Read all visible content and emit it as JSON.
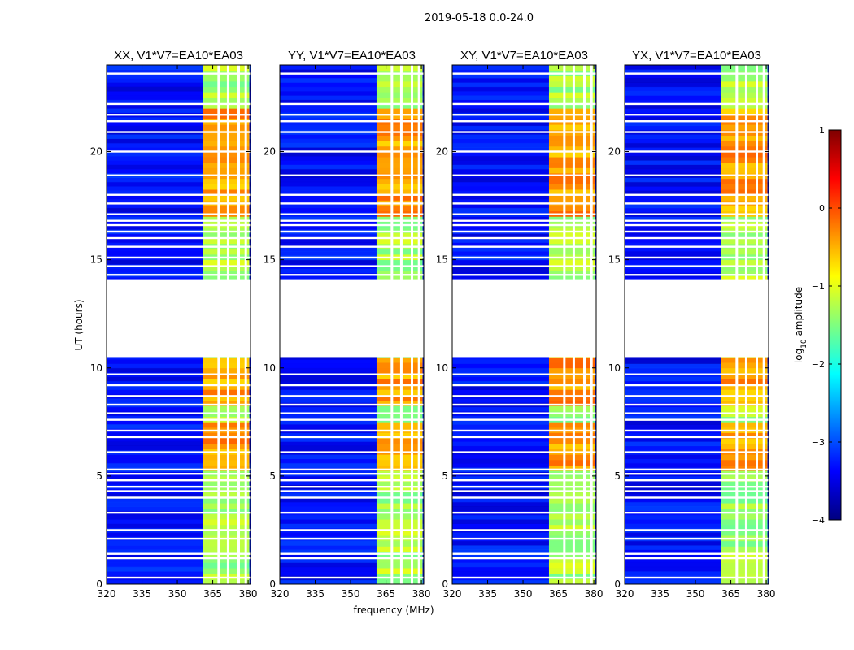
{
  "chart_data": {
    "type": "heatmap",
    "suptitle": "2019-05-18 0.0-24.0",
    "xlabel": "frequency (MHz)",
    "ylabel": "UT (hours)",
    "xlim": [
      320,
      381
    ],
    "ylim": [
      0,
      24
    ],
    "xticks": [
      320,
      335,
      350,
      365,
      380
    ],
    "yticks": [
      0,
      5,
      10,
      15,
      20
    ],
    "xtick_labels": [
      "320",
      "335",
      "350",
      "365",
      "380"
    ],
    "ytick_labels": [
      "0",
      "5",
      "10",
      "15",
      "20"
    ],
    "panels": [
      {
        "polarization": "XX",
        "title": "XX, V1*V7=EA10*EA03"
      },
      {
        "polarization": "YY",
        "title": "YY, V1*V7=EA10*EA03"
      },
      {
        "polarization": "XY",
        "title": "XY, V1*V7=EA10*EA03"
      },
      {
        "polarization": "YX",
        "title": "YX, V1*V7=EA10*EA03"
      }
    ],
    "colorbar": {
      "label": "log10 amplitude",
      "range": [
        -4,
        1
      ],
      "ticks": [
        1,
        0,
        -1,
        -2,
        -3,
        -4
      ],
      "tick_labels": [
        "1",
        "0",
        "−1",
        "−2",
        "−3",
        "−4"
      ],
      "colormap": "jet"
    },
    "background_level": -3.3,
    "rfi_band_mhz": [
      361,
      380.5
    ],
    "rfi_level": -1.3,
    "strong_rfi_hours": [
      [
        5.2,
        7.6
      ],
      [
        8.2,
        10.5
      ],
      [
        17,
        22
      ]
    ],
    "strong_rfi_level": -0.4,
    "data_gap_hours": [
      10.5,
      14.1
    ],
    "flagged_hours": [
      0.3,
      1.2,
      1.4,
      2.1,
      2.5,
      3.3,
      4.0,
      4.3,
      4.5,
      4.8,
      5.1,
      5.3,
      6.1,
      6.8,
      7.1,
      7.6,
      7.9,
      8.3,
      8.7,
      9.2,
      9.7,
      14.3,
      14.7,
      15.1,
      15.6,
      16.0,
      16.3,
      16.6,
      16.8,
      17.1,
      17.6,
      18.0,
      18.9,
      20.0,
      20.9,
      21.4,
      21.7,
      22.2,
      23.6
    ],
    "flagged_channels_mhz": [
      367.5,
      371.5,
      376,
      379
    ]
  },
  "colors": {
    "background": "#ffffff",
    "text": "#000000",
    "flag": "#ffffff",
    "jet_stops": [
      "#00007f",
      "#0000ff",
      "#007fff",
      "#00ffff",
      "#7fff7f",
      "#ffff00",
      "#ff7f00",
      "#ff0000",
      "#7f0000"
    ]
  }
}
